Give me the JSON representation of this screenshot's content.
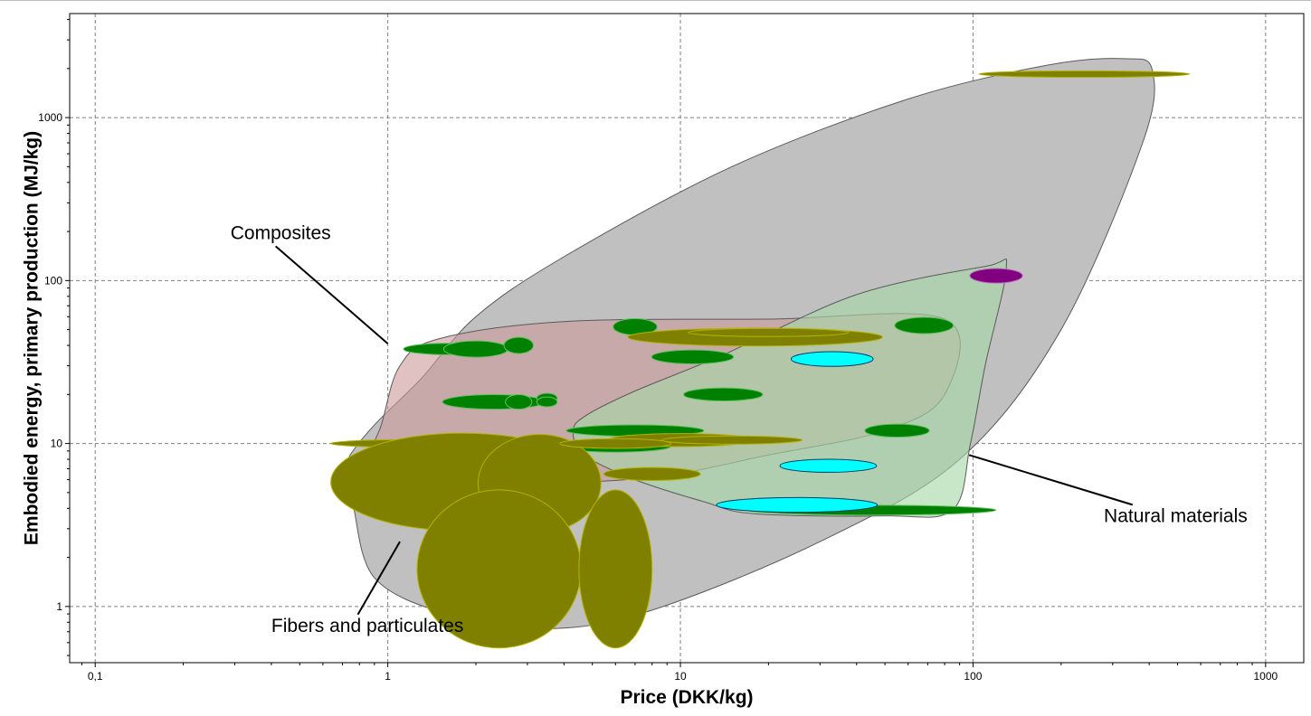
{
  "chart_data": {
    "type": "scatter",
    "title": "",
    "xlabel": "Price (DKK/kg)",
    "ylabel": "Embodied energy, primary production (MJ/kg)",
    "x_scale": "log",
    "y_scale": "log",
    "xlim": [
      0.0818,
      1350
    ],
    "ylim": [
      0.452,
      4350
    ],
    "x_ticks": [
      {
        "value": 0.1,
        "label": "0,1"
      },
      {
        "value": 1,
        "label": "1"
      },
      {
        "value": 10,
        "label": "10"
      },
      {
        "value": 100,
        "label": "100"
      },
      {
        "value": 1000,
        "label": "1000"
      }
    ],
    "y_ticks": [
      {
        "value": 1,
        "label": "1"
      },
      {
        "value": 10,
        "label": "10"
      },
      {
        "value": 100,
        "label": "100"
      },
      {
        "value": 1000,
        "label": "1000"
      }
    ],
    "grid": true,
    "colors": {
      "composites_envelope": "#cc9999",
      "fibers_envelope": "#c0c0c0",
      "natural_envelope": "#a6d8a6",
      "green_bubble": "#008000",
      "olive_bubble": "#808000",
      "cyan_bubble": "#00ffff",
      "purple_bubble": "#800080"
    },
    "envelopes": [
      {
        "group": "fibers",
        "points": [
          [
            0.76,
            4.2
          ],
          [
            0.9,
            1.5
          ],
          [
            1.6,
            0.9
          ],
          [
            3.5,
            0.73
          ],
          [
            8,
            0.95
          ],
          [
            30,
            2.5
          ],
          [
            90,
            8
          ],
          [
            200,
            50
          ],
          [
            380,
            700
          ],
          [
            410,
            1950
          ],
          [
            330,
            2300
          ],
          [
            180,
            2100
          ],
          [
            60,
            1300
          ],
          [
            15,
            500
          ],
          [
            4,
            140
          ],
          [
            2,
            60
          ],
          [
            1.3,
            25
          ],
          [
            0.9,
            13
          ],
          [
            0.73,
            8
          ],
          [
            0.72,
            5.8
          ]
        ]
      },
      {
        "group": "composites",
        "points": [
          [
            0.85,
            7.2
          ],
          [
            1.1,
            5.5
          ],
          [
            2.5,
            5.6
          ],
          [
            8,
            6.2
          ],
          [
            20,
            8.5
          ],
          [
            50,
            12
          ],
          [
            80,
            20
          ],
          [
            80,
            58
          ],
          [
            20,
            58
          ],
          [
            4,
            56
          ],
          [
            1.5,
            44
          ],
          [
            1.1,
            30
          ],
          [
            0.95,
            13
          ]
        ]
      },
      {
        "group": "natural",
        "points": [
          [
            4.3,
            12
          ],
          [
            4.7,
            8.5
          ],
          [
            7,
            6
          ],
          [
            12,
            4.4
          ],
          [
            18,
            3.7
          ],
          [
            50,
            3.6
          ],
          [
            85,
            3.9
          ],
          [
            98,
            10
          ],
          [
            110,
            30
          ],
          [
            130,
            120
          ],
          [
            110,
            122
          ],
          [
            40,
            82
          ],
          [
            14,
            35
          ],
          [
            7,
            21
          ],
          [
            4.8,
            15
          ]
        ]
      }
    ],
    "series": [
      {
        "name": "",
        "color": "green",
        "points": [
          {
            "x": 1.6,
            "y": 38,
            "wx": 0.3,
            "wy": 0.07
          },
          {
            "x": 2.0,
            "y": 38,
            "wx": 0.22,
            "wy": 0.1
          },
          {
            "x": 2.8,
            "y": 40,
            "wx": 0.1,
            "wy": 0.1
          },
          {
            "x": 7.0,
            "y": 52,
            "wx": 0.15,
            "wy": 0.1
          },
          {
            "x": 68,
            "y": 53,
            "wx": 0.2,
            "wy": 0.1
          },
          {
            "x": 11,
            "y": 34,
            "wx": 0.28,
            "wy": 0.085
          },
          {
            "x": 2.3,
            "y": 18,
            "wx": 0.35,
            "wy": 0.09
          },
          {
            "x": 2.8,
            "y": 18,
            "wx": 0.09,
            "wy": 0.09
          },
          {
            "x": 3.5,
            "y": 19,
            "wx": 0.07,
            "wy": 0.06
          },
          {
            "x": 3.5,
            "y": 18,
            "wx": 0.07,
            "wy": 0.06
          },
          {
            "x": 14,
            "y": 20,
            "wx": 0.27,
            "wy": 0.08
          },
          {
            "x": 7.0,
            "y": 12,
            "wx": 0.47,
            "wy": 0.07
          },
          {
            "x": 55,
            "y": 12,
            "wx": 0.22,
            "wy": 0.08
          },
          {
            "x": 1.3,
            "y": 8.3,
            "wx": 0.44,
            "wy": 0.07
          },
          {
            "x": 1.1,
            "y": 5.5,
            "wx": 0.075,
            "wy": 0.08
          },
          {
            "x": 6.0,
            "y": 9.6,
            "wx": 0.38,
            "wy": 0.07
          },
          {
            "x": 45,
            "y": 3.9,
            "wx": 0.85,
            "wy": 0.06
          }
        ]
      },
      {
        "name": "",
        "color": "olive",
        "points": [
          {
            "x": 1.7,
            "y": 10,
            "wx": 0.85,
            "wy": 0.055
          },
          {
            "x": 1.8,
            "y": 5.8,
            "wx": 0.9,
            "wy": 0.6
          },
          {
            "x": 3.3,
            "y": 5.7,
            "wx": 0.42,
            "wy": 0.6
          },
          {
            "x": 2.4,
            "y": 1.7,
            "wx": 0.56,
            "wy": 0.97
          },
          {
            "x": 6.0,
            "y": 1.7,
            "wx": 0.25,
            "wy": 0.97
          },
          {
            "x": 8.0,
            "y": 6.5,
            "wx": 0.33,
            "wy": 0.08
          },
          {
            "x": 18,
            "y": 45,
            "wx": 0.87,
            "wy": 0.11
          },
          {
            "x": 20,
            "y": 48,
            "wx": 0.55,
            "wy": 0.05
          },
          {
            "x": 10,
            "y": 10.5,
            "wx": 0.5,
            "wy": 0.08
          },
          {
            "x": 15,
            "y": 10.5,
            "wx": 0.48,
            "wy": 0.05
          },
          {
            "x": 6.0,
            "y": 10,
            "wx": 0.38,
            "wy": 0.06
          },
          {
            "x": 240,
            "y": 1850,
            "wx": 0.72,
            "wy": 0.04
          }
        ]
      },
      {
        "name": "",
        "color": "cyan",
        "points": [
          {
            "x": 33,
            "y": 33,
            "wx": 0.28,
            "wy": 0.09
          },
          {
            "x": 32,
            "y": 7.3,
            "wx": 0.33,
            "wy": 0.08
          },
          {
            "x": 25,
            "y": 4.2,
            "wx": 0.55,
            "wy": 0.09
          }
        ]
      },
      {
        "name": "",
        "color": "purple",
        "points": [
          {
            "x": 120,
            "y": 107,
            "wx": 0.18,
            "wy": 0.09
          }
        ]
      }
    ],
    "annotations": [
      {
        "text": "Composites",
        "x": 0.29,
        "y": 180,
        "arrow_to": [
          1.0,
          41
        ]
      },
      {
        "text": "Natural materials",
        "x": 280,
        "y": 3.3,
        "arrow_to": [
          97,
          8.5
        ]
      },
      {
        "text": "Fibers and particulates",
        "x": 0.4,
        "y": 0.7,
        "arrow_to": [
          1.1,
          2.5
        ]
      }
    ]
  }
}
